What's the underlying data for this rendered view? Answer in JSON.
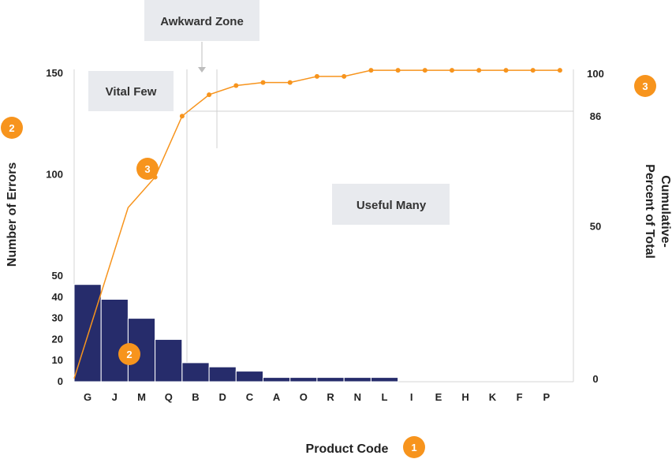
{
  "chart_data": {
    "type": "bar",
    "categories": [
      "G",
      "J",
      "M",
      "Q",
      "B",
      "D",
      "C",
      "A",
      "O",
      "R",
      "N",
      "L",
      "I",
      "E",
      "H",
      "K",
      "F",
      "P"
    ],
    "series": [
      {
        "type": "bar",
        "values": [
          46,
          39,
          30,
          20,
          9,
          7,
          5,
          2,
          2,
          2,
          2,
          2,
          0,
          0,
          0,
          0,
          0,
          0
        ]
      },
      {
        "type": "line",
        "axis": "right",
        "values": [
          0,
          56,
          66,
          86,
          93,
          96,
          97,
          97,
          99,
          99,
          101,
          101,
          101,
          101,
          101,
          101,
          101,
          101
        ]
      }
    ],
    "left_axis": {
      "label": "Number of Errors",
      "ticks": [
        {
          "label": "0",
          "value": 0
        },
        {
          "label": "10",
          "value": 10
        },
        {
          "label": "20",
          "value": 20
        },
        {
          "label": "30",
          "value": 30
        },
        {
          "label": "40",
          "value": 40
        },
        {
          "label": "50",
          "value": 50
        },
        {
          "label": "100",
          "value": 100
        },
        {
          "label": "150",
          "value": 150
        }
      ]
    },
    "right_axis": {
      "label_lines": [
        "Cumulative-",
        "Percent of Total"
      ],
      "ticks": [
        {
          "label": "0",
          "value": 0
        },
        {
          "label": "50",
          "value": 50
        },
        {
          "label": "86",
          "value": 86
        },
        {
          "label": "100",
          "value": 100
        }
      ]
    },
    "xlabel": "Product Code",
    "zones": {
      "vital_few": "Vital Few",
      "awkward_zone": "Awkward Zone",
      "useful_many": "Useful Many"
    },
    "badges": [
      "1",
      "2",
      "2",
      "3",
      "3"
    ],
    "colors": {
      "bar": "#262c6b",
      "line": "#f7941d",
      "badge": "#f7941d",
      "guide": "#d0d0d0",
      "zone_box": "#e8eaee"
    }
  }
}
